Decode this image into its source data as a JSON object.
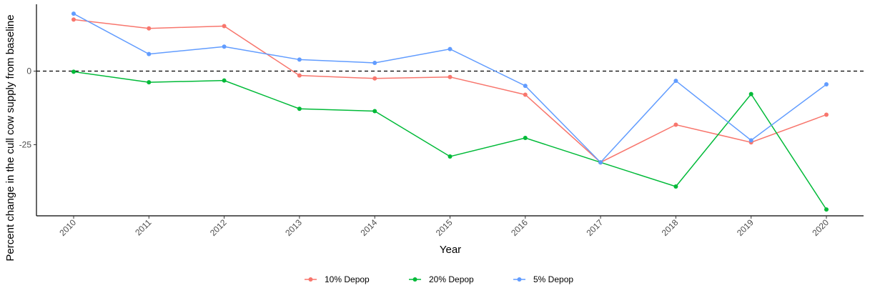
{
  "chart_data": {
    "type": "line",
    "title": "",
    "xlabel": "Year",
    "ylabel": "Percent change in the cull cow supply from baseline",
    "x": [
      2010,
      2011,
      2012,
      2013,
      2014,
      2015,
      2016,
      2017,
      2018,
      2019,
      2020
    ],
    "x_tick_labels": [
      "2010",
      "2011",
      "2012",
      "2013",
      "2014",
      "2015",
      "2016",
      "2017",
      "2018",
      "2019",
      "2020"
    ],
    "y_ticks": [
      0,
      -25
    ],
    "y_tick_labels": [
      "0",
      "-25"
    ],
    "ylim": [
      -50,
      22
    ],
    "reference_line": {
      "y": 0,
      "style": "dashed"
    },
    "grid": false,
    "legend_position": "bottom",
    "series": [
      {
        "name": "10% Depop",
        "color": "#F8766D",
        "values": [
          17.5,
          14.5,
          15.3,
          -1.5,
          -2.5,
          -2.0,
          -8.0,
          -31.0,
          -18.2,
          -24.2,
          -14.8
        ]
      },
      {
        "name": "20% Depop",
        "color": "#00BA38",
        "values": [
          -0.2,
          -3.8,
          -3.2,
          -12.8,
          -13.6,
          -29.0,
          -22.7,
          -31.0,
          -39.2,
          -7.8,
          -47.0
        ]
      },
      {
        "name": "5% Depop",
        "color": "#619CFF",
        "values": [
          19.5,
          5.8,
          8.3,
          3.9,
          2.8,
          7.5,
          -5.0,
          -31.0,
          -3.3,
          -23.5,
          -4.5
        ]
      }
    ]
  }
}
